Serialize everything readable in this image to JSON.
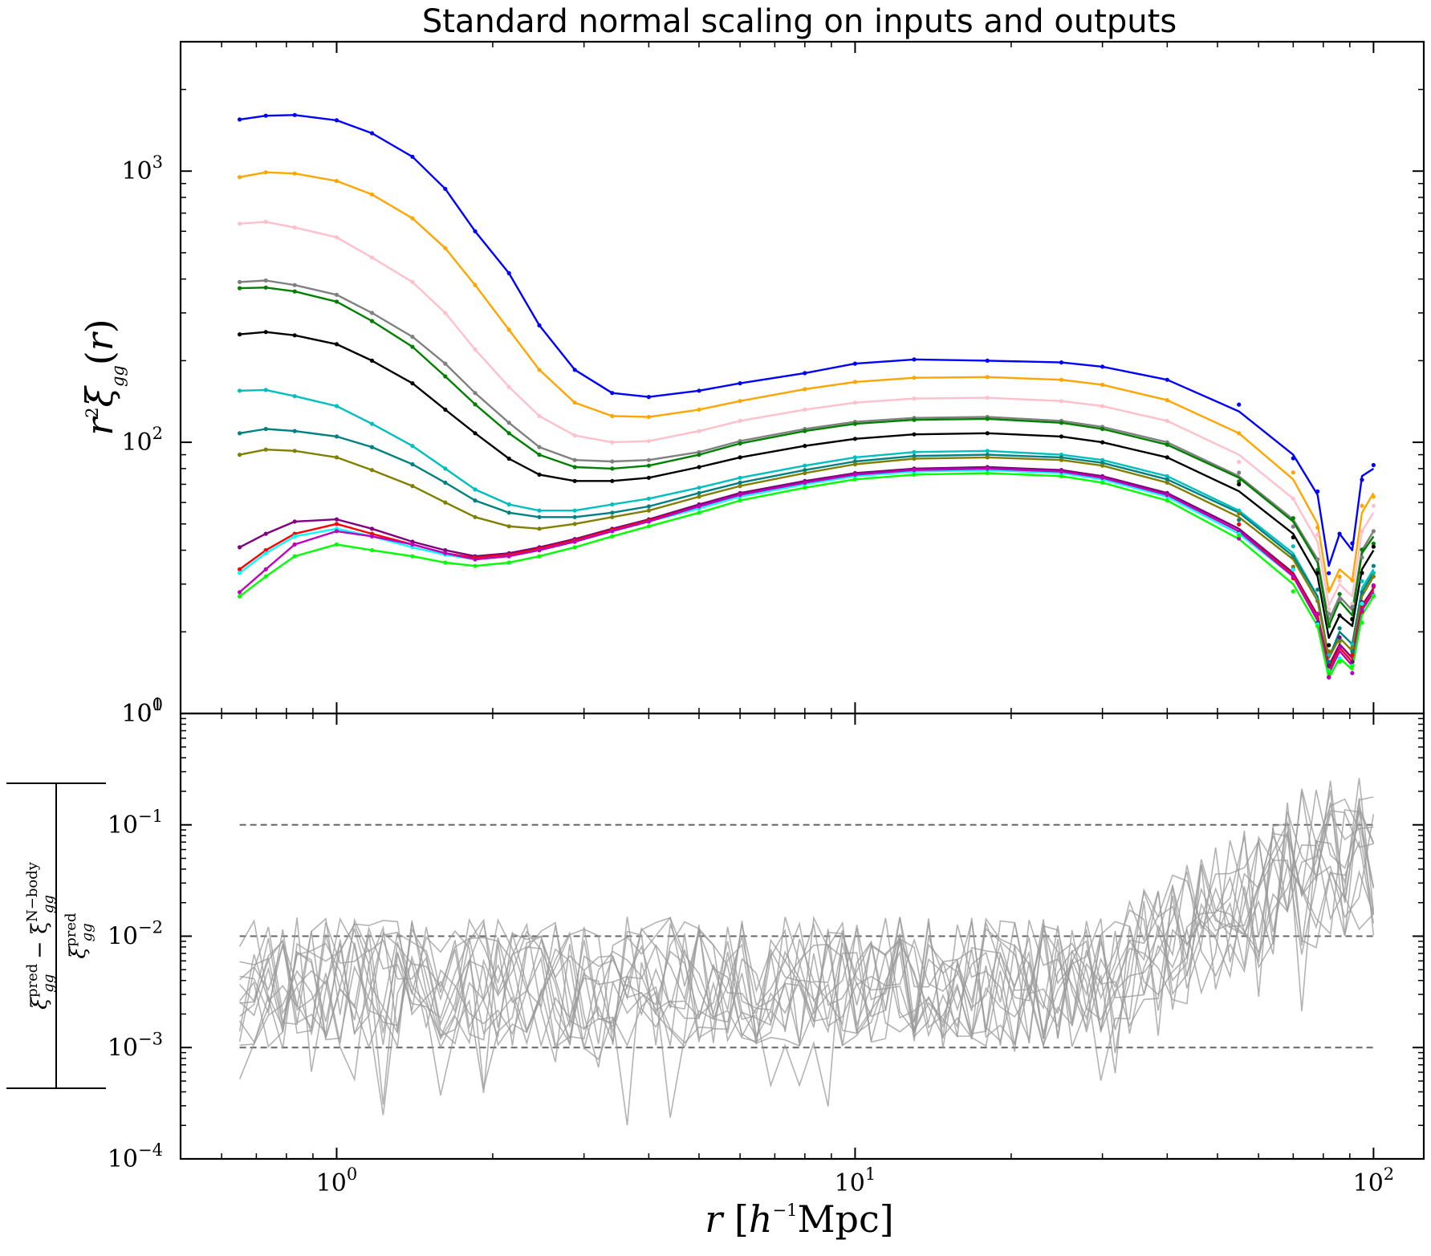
{
  "chart_data": [
    {
      "type": "line",
      "title": "Standard normal scaling on inputs and outputs",
      "ylabel": "r²ξ_gg(r)",
      "yscale": "log",
      "xscale": "log",
      "xlim": [
        0.5,
        125
      ],
      "ylim": [
        10,
        3000
      ],
      "grid": false,
      "ytick_labels": [
        {
          "base": "10",
          "exp": "3",
          "value": 1000
        },
        {
          "base": "10",
          "exp": "2",
          "value": 100
        },
        {
          "base": "10",
          "exp": "1",
          "value": 10
        },
        {
          "base": "10",
          "exp": "0",
          "value": 1
        }
      ],
      "markers": "dots = N-body measurements, lines = emulator predictions",
      "x": [
        0.65,
        0.73,
        0.83,
        1.0,
        1.17,
        1.4,
        1.62,
        1.85,
        2.15,
        2.46,
        2.88,
        3.4,
        4.0,
        5.0,
        6.0,
        8.0,
        10.0,
        13.0,
        18.0,
        25.0,
        30.0,
        40.0,
        55.0,
        70.0,
        78.0,
        82.0,
        86.0,
        91.0,
        95.0,
        100.0
      ],
      "series": [
        {
          "color": "#0000ff",
          "values": [
            1550,
            1600,
            1610,
            1540,
            1380,
            1130,
            860,
            600,
            420,
            270,
            185,
            152,
            147,
            155,
            165,
            180,
            195,
            202,
            200,
            197,
            190,
            170,
            130,
            90,
            64,
            35,
            46,
            40,
            75,
            80
          ]
        },
        {
          "color": "#ffa500",
          "values": [
            950,
            990,
            980,
            920,
            820,
            670,
            520,
            380,
            260,
            185,
            140,
            125,
            124,
            132,
            142,
            157,
            167,
            173,
            174,
            170,
            163,
            143,
            108,
            73,
            50,
            28,
            34,
            31,
            55,
            65
          ]
        },
        {
          "color": "#ffc0cb",
          "values": [
            640,
            650,
            620,
            570,
            480,
            390,
            300,
            220,
            160,
            125,
            106,
            100,
            101,
            110,
            120,
            132,
            140,
            145,
            146,
            142,
            136,
            120,
            90,
            62,
            43,
            25,
            30,
            27,
            47,
            55
          ]
        },
        {
          "color": "#808080",
          "values": [
            390,
            395,
            380,
            350,
            300,
            245,
            195,
            152,
            118,
            96,
            86,
            85,
            86,
            92,
            101,
            112,
            119,
            123,
            124,
            120,
            114,
            100,
            75,
            52,
            37,
            22,
            27,
            24,
            40,
            47
          ]
        },
        {
          "color": "#008000",
          "values": [
            370,
            372,
            360,
            330,
            280,
            225,
            175,
            138,
            108,
            90,
            81,
            80,
            82,
            90,
            99,
            110,
            117,
            121,
            122,
            118,
            112,
            98,
            74,
            51,
            36,
            21,
            26,
            23,
            39,
            45
          ]
        },
        {
          "color": "#000000",
          "values": [
            250,
            255,
            248,
            230,
            200,
            165,
            132,
            108,
            87,
            76,
            72,
            72,
            74,
            81,
            88,
            97,
            103,
            107,
            108,
            105,
            100,
            88,
            66,
            46,
            32,
            19,
            23,
            21,
            34,
            40
          ]
        },
        {
          "color": "#00bfbf",
          "values": [
            155,
            156,
            148,
            136,
            117,
            97,
            80,
            67,
            59,
            56,
            56,
            59,
            62,
            68,
            74,
            82,
            88,
            92,
            93,
            90,
            86,
            75,
            56,
            39,
            27,
            16,
            20,
            18,
            29,
            34
          ]
        },
        {
          "color": "#008080",
          "values": [
            108,
            112,
            110,
            105,
            96,
            83,
            71,
            61,
            55,
            53,
            53,
            55,
            58,
            65,
            71,
            79,
            85,
            89,
            90,
            88,
            84,
            73,
            55,
            38,
            27,
            16,
            20,
            18,
            28,
            33
          ]
        },
        {
          "color": "#808000",
          "values": [
            90,
            94,
            93,
            88,
            79,
            69,
            60,
            53,
            49,
            48,
            50,
            53,
            56,
            63,
            69,
            77,
            83,
            87,
            88,
            86,
            82,
            71,
            53,
            37,
            26,
            16,
            19,
            17,
            27,
            32
          ]
        },
        {
          "color": "#800080",
          "values": [
            41,
            46,
            51,
            52,
            48,
            43,
            40,
            38,
            39,
            41,
            44,
            48,
            52,
            59,
            65,
            72,
            77,
            80,
            81,
            79,
            75,
            65,
            48,
            33,
            23,
            15,
            18,
            16,
            25,
            29
          ]
        },
        {
          "color": "#ff0000",
          "values": [
            34,
            40,
            46,
            50,
            46,
            42,
            39,
            37.5,
            38.5,
            40.5,
            43.5,
            47.5,
            51.5,
            58,
            64,
            71,
            76,
            79,
            80,
            78,
            74,
            64,
            47,
            32.5,
            22.5,
            14.5,
            17.5,
            15.5,
            24.5,
            28.5
          ]
        },
        {
          "color": "#00ffff",
          "values": [
            33,
            39,
            45,
            48,
            45,
            41,
            38.5,
            37,
            38,
            40,
            43,
            47,
            51,
            57,
            63,
            70,
            75,
            78,
            79,
            77,
            73,
            63,
            46,
            32,
            22,
            14,
            17,
            15,
            24,
            28
          ]
        },
        {
          "color": "#bf00bf",
          "values": [
            28,
            34,
            42,
            47,
            45,
            42,
            39,
            37,
            38,
            40,
            43,
            47,
            51,
            58,
            64,
            71,
            76,
            79,
            80,
            78,
            74,
            64,
            47,
            32,
            22,
            14,
            17,
            15,
            24,
            28
          ]
        },
        {
          "color": "#00ff00",
          "values": [
            27,
            32,
            38,
            42,
            40,
            38,
            36,
            35,
            36,
            38,
            41,
            45,
            49,
            55,
            61,
            68,
            73,
            76,
            77,
            75,
            71,
            61,
            44,
            30,
            21,
            13.5,
            16,
            14.5,
            23,
            27
          ]
        }
      ]
    },
    {
      "type": "line",
      "ylabel": "|ξ_gg^pred − ξ_gg^N−body| / ξ_gg^pred",
      "ylabel_parts": {
        "sup1": "pred",
        "sup2": "N−body",
        "sup3": "pred",
        "sub": "gg"
      },
      "xlabel": "r [h⁻¹Mpc]",
      "xlabel_parts": {
        "r": "r",
        "h": "h",
        "exp": "−1",
        "unit": "Mpc"
      },
      "xscale": "log",
      "yscale": "log",
      "xlim": [
        0.5,
        125
      ],
      "ylim": [
        0.0001,
        1
      ],
      "xtick_labels": [
        {
          "base": "10",
          "exp": "0",
          "value": 1
        },
        {
          "base": "10",
          "exp": "1",
          "value": 10
        },
        {
          "base": "10",
          "exp": "2",
          "value": 100
        }
      ],
      "ytick_labels": [
        {
          "base": "10",
          "exp": "−1",
          "value": 0.1
        },
        {
          "base": "10",
          "exp": "−2",
          "value": 0.01
        },
        {
          "base": "10",
          "exp": "−3",
          "value": 0.001
        },
        {
          "base": "10",
          "exp": "−4",
          "value": 0.0001
        }
      ],
      "reference_lines": [
        0.1,
        0.01,
        0.001
      ],
      "residual_color": "#999999",
      "residual_x_range": [
        0.65,
        100
      ],
      "residual_series_count": 14,
      "residual_summary": {
        "typical_small_r": [
          0.001,
          0.015
        ],
        "typical_large_r": [
          0.01,
          0.3
        ]
      }
    }
  ]
}
